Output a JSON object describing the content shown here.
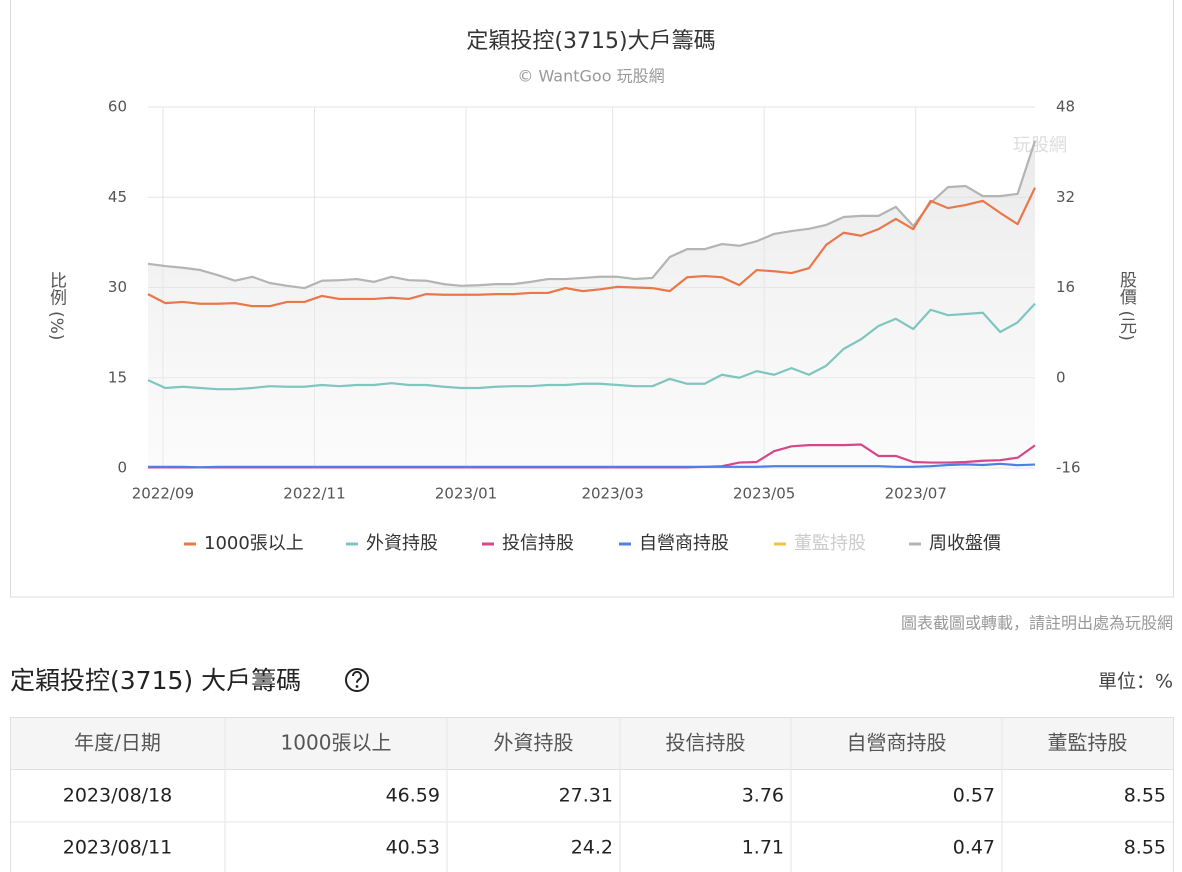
{
  "chart_data": {
    "type": "line",
    "title": "定穎投控(3715)大戶籌碼",
    "subtitle": "© WantGoo 玩股網",
    "watermark": "玩股網",
    "ylabel": "比例 (%)",
    "y2label": "股價 (元)",
    "x": [
      "2022/08/26",
      "2022/09/02",
      "2022/09/09",
      "2022/09/16",
      "2022/09/23",
      "2022/09/30",
      "2022/10/07",
      "2022/10/14",
      "2022/10/21",
      "2022/10/28",
      "2022/11/04",
      "2022/11/11",
      "2022/11/18",
      "2022/11/25",
      "2022/12/02",
      "2022/12/09",
      "2022/12/16",
      "2022/12/23",
      "2022/12/30",
      "2023/01/06",
      "2023/01/13",
      "2023/01/20",
      "2023/01/27",
      "2023/02/03",
      "2023/02/10",
      "2023/02/17",
      "2023/02/24",
      "2023/03/03",
      "2023/03/10",
      "2023/03/17",
      "2023/03/24",
      "2023/03/31",
      "2023/04/07",
      "2023/04/14",
      "2023/04/21",
      "2023/04/28",
      "2023/05/05",
      "2023/05/12",
      "2023/05/19",
      "2023/05/26",
      "2023/06/02",
      "2023/06/09",
      "2023/06/16",
      "2023/06/23",
      "2023/06/30",
      "2023/07/07",
      "2023/07/14",
      "2023/07/21",
      "2023/07/28",
      "2023/08/04",
      "2023/08/11",
      "2023/08/18"
    ],
    "xlim": [
      "2022/08/26",
      "2023/08/18"
    ],
    "xticks": [
      {
        "value": "2022/09/01",
        "label": "2022/09"
      },
      {
        "value": "2022/11/01",
        "label": "2022/11"
      },
      {
        "value": "2023/01/01",
        "label": "2023/01"
      },
      {
        "value": "2023/03/01",
        "label": "2023/03"
      },
      {
        "value": "2023/05/01",
        "label": "2023/05"
      },
      {
        "value": "2023/07/01",
        "label": "2023/07"
      }
    ],
    "ylim": [
      0,
      60
    ],
    "yticks": [
      0,
      15,
      30,
      45,
      60
    ],
    "y2lim": [
      -16,
      48
    ],
    "y2ticks": [
      -16,
      0,
      16,
      32,
      48
    ],
    "grid": true,
    "legend": "bottom",
    "series": [
      {
        "name": "1000張以上",
        "color": "#e8784a",
        "values": [
          28.9,
          27.4,
          27.6,
          27.3,
          27.3,
          27.4,
          26.9,
          26.9,
          27.6,
          27.6,
          28.6,
          28.1,
          28.1,
          28.1,
          28.3,
          28.1,
          28.9,
          28.8,
          28.8,
          28.8,
          28.9,
          28.9,
          29.1,
          29.1,
          29.9,
          29.4,
          29.7,
          30.1,
          30.0,
          29.9,
          29.4,
          31.7,
          31.9,
          31.7,
          30.4,
          32.9,
          32.7,
          32.4,
          33.2,
          37.1,
          39.1,
          38.6,
          39.7,
          41.4,
          39.7,
          44.4,
          43.2,
          43.7,
          44.4,
          42.4,
          40.53,
          46.59
        ]
      },
      {
        "name": "外資持股",
        "color": "#7fc6bf",
        "values": [
          14.6,
          13.3,
          13.5,
          13.3,
          13.1,
          13.1,
          13.3,
          13.6,
          13.5,
          13.5,
          13.8,
          13.6,
          13.8,
          13.8,
          14.1,
          13.8,
          13.8,
          13.5,
          13.3,
          13.3,
          13.5,
          13.6,
          13.6,
          13.8,
          13.8,
          14.0,
          14.0,
          13.8,
          13.6,
          13.6,
          14.8,
          14.0,
          14.0,
          15.5,
          15.0,
          16.1,
          15.5,
          16.6,
          15.5,
          17.0,
          19.8,
          21.4,
          23.6,
          24.8,
          23.1,
          26.3,
          25.4,
          25.6,
          25.8,
          22.6,
          24.2,
          27.31
        ]
      },
      {
        "name": "投信持股",
        "color": "#d6478a",
        "values": [
          0.1,
          0.1,
          0.1,
          0.1,
          0.1,
          0.1,
          0.1,
          0.1,
          0.1,
          0.1,
          0.1,
          0.1,
          0.1,
          0.1,
          0.1,
          0.1,
          0.1,
          0.1,
          0.1,
          0.1,
          0.1,
          0.1,
          0.1,
          0.1,
          0.1,
          0.1,
          0.1,
          0.1,
          0.1,
          0.1,
          0.1,
          0.1,
          0.2,
          0.3,
          0.9,
          1.0,
          2.8,
          3.6,
          3.8,
          3.8,
          3.8,
          3.9,
          2.0,
          2.0,
          1.0,
          0.9,
          0.9,
          1.0,
          1.2,
          1.3,
          1.71,
          3.76
        ]
      },
      {
        "name": "自營商持股",
        "color": "#4f7fe0",
        "values": [
          0.2,
          0.2,
          0.2,
          0.1,
          0.2,
          0.2,
          0.2,
          0.2,
          0.2,
          0.2,
          0.2,
          0.2,
          0.2,
          0.2,
          0.2,
          0.2,
          0.2,
          0.2,
          0.2,
          0.2,
          0.2,
          0.2,
          0.2,
          0.2,
          0.2,
          0.2,
          0.2,
          0.2,
          0.2,
          0.2,
          0.2,
          0.2,
          0.2,
          0.2,
          0.2,
          0.2,
          0.3,
          0.3,
          0.3,
          0.3,
          0.3,
          0.3,
          0.3,
          0.2,
          0.2,
          0.3,
          0.5,
          0.6,
          0.5,
          0.7,
          0.47,
          0.57
        ]
      },
      {
        "name": "董監持股",
        "color": "#f5c342",
        "hidden": true
      },
      {
        "name": "周收盤價",
        "color": "#b4b4b4",
        "axis": "y2",
        "area": true,
        "values": [
          20.2,
          19.8,
          19.5,
          19.1,
          18.2,
          17.2,
          17.9,
          16.8,
          16.3,
          15.9,
          17.2,
          17.3,
          17.5,
          17.0,
          17.9,
          17.3,
          17.2,
          16.6,
          16.3,
          16.4,
          16.6,
          16.6,
          17.0,
          17.5,
          17.5,
          17.7,
          17.9,
          17.9,
          17.5,
          17.7,
          21.4,
          22.8,
          22.8,
          23.7,
          23.4,
          24.2,
          25.5,
          26.0,
          26.4,
          27.1,
          28.5,
          28.7,
          28.7,
          30.3,
          26.9,
          31.0,
          33.8,
          34.0,
          32.2,
          32.2,
          32.6,
          42.0
        ]
      }
    ]
  },
  "note": "圖表截圖或轉載，請註明出處為玩股網",
  "table": {
    "title": "定穎投控(3715) 大戶籌碼",
    "unit": "單位：%",
    "columns": [
      "年度/日期",
      "1000張以上",
      "外資持股",
      "投信持股",
      "自營商持股",
      "董監持股"
    ],
    "rows": [
      [
        "2023/08/18",
        "46.59",
        "27.31",
        "3.76",
        "0.57",
        "8.55"
      ],
      [
        "2023/08/11",
        "40.53",
        "24.2",
        "1.71",
        "0.47",
        "8.55"
      ]
    ]
  }
}
